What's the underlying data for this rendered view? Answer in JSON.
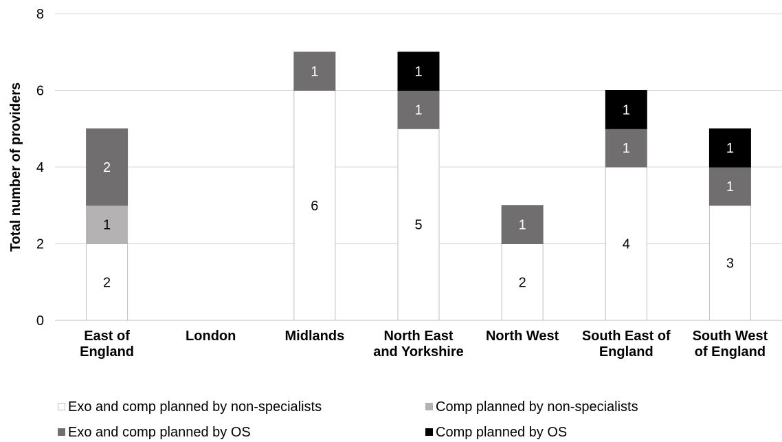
{
  "chart_data": {
    "type": "bar",
    "stacked": true,
    "categories": [
      [
        "East of",
        "England"
      ],
      [
        "London"
      ],
      [
        "Midlands"
      ],
      [
        "North East",
        "and Yorkshire"
      ],
      [
        "North West"
      ],
      [
        "South East of",
        "England"
      ],
      [
        "South West",
        "of England"
      ]
    ],
    "series": [
      {
        "name": "Exo and comp planned by non-specialists",
        "color": "#ffffff",
        "label_color": "#000000",
        "values": [
          2,
          0,
          6,
          5,
          2,
          4,
          3
        ]
      },
      {
        "name": "Comp planned by non-specialists",
        "color": "#b4b2b2",
        "label_color": "#000000",
        "values": [
          1,
          0,
          0,
          0,
          0,
          0,
          0
        ]
      },
      {
        "name": "Exo and comp planned by OS",
        "color": "#706e6e",
        "label_color": "#ffffff",
        "values": [
          2,
          0,
          1,
          1,
          1,
          1,
          1
        ]
      },
      {
        "name": "Comp planned by OS",
        "color": "#000000",
        "label_color": "#ffffff",
        "values": [
          0,
          0,
          0,
          1,
          0,
          1,
          1
        ]
      }
    ],
    "ylabel": "Total number of providers",
    "xlabel": "",
    "ylim": [
      0,
      8
    ],
    "yticks": [
      0,
      2,
      4,
      6,
      8
    ],
    "grid": true,
    "legend_position": "bottom"
  }
}
